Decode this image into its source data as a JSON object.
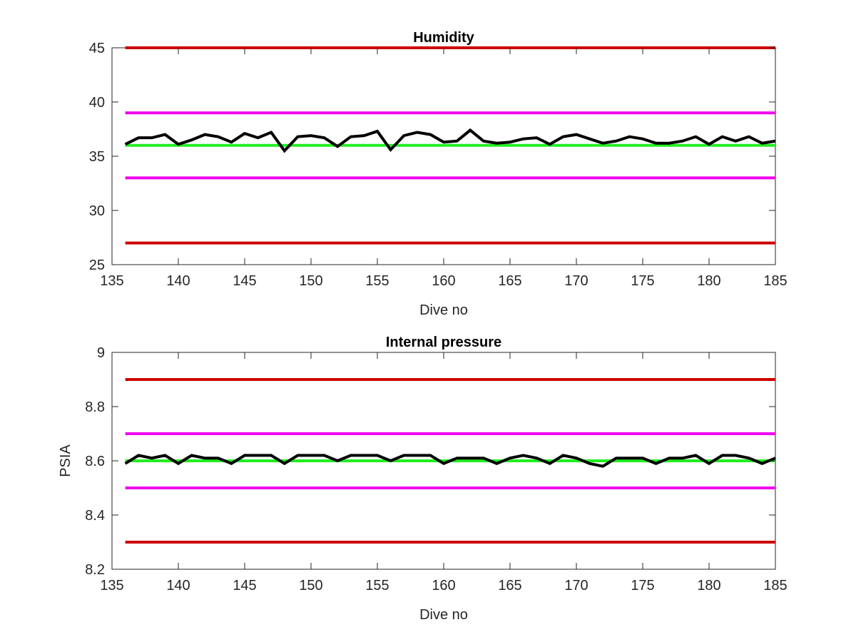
{
  "colors": {
    "red_limit": "#cc0000",
    "magenta_limit": "#ee00ee",
    "green_nominal": "#22ee22",
    "data_line": "#000000"
  },
  "chart_data": [
    {
      "type": "line",
      "title": "Humidity",
      "xlabel": "Dive no",
      "ylabel": "",
      "xlim": [
        135,
        185
      ],
      "ylim": [
        25,
        45
      ],
      "xticks": [
        135,
        140,
        145,
        150,
        155,
        160,
        165,
        170,
        175,
        180,
        185
      ],
      "yticks": [
        25,
        30,
        35,
        40,
        45
      ],
      "grid": false,
      "reference_lines": [
        {
          "y": 45,
          "color": "red",
          "x": [
            136,
            185
          ]
        },
        {
          "y": 39,
          "color": "magenta",
          "x": [
            136,
            185
          ]
        },
        {
          "y": 36,
          "color": "green",
          "x": [
            136,
            185
          ]
        },
        {
          "y": 33,
          "color": "magenta",
          "x": [
            136,
            185
          ]
        },
        {
          "y": 27,
          "color": "red",
          "x": [
            136,
            185
          ]
        }
      ],
      "series": [
        {
          "x": [
            136,
            137,
            138,
            139,
            140,
            141,
            142,
            143,
            144,
            145,
            146,
            147,
            148,
            149,
            150,
            151,
            152,
            153,
            154,
            155,
            156,
            157,
            158,
            159,
            160,
            161,
            162,
            163,
            164,
            165,
            166,
            167,
            168,
            169,
            170,
            171,
            172,
            173,
            174,
            175,
            176,
            177,
            178,
            179,
            180,
            181,
            182,
            183,
            184,
            185
          ],
          "values": [
            36.1,
            36.7,
            36.7,
            37.0,
            36.1,
            36.5,
            37.0,
            36.8,
            36.3,
            37.1,
            36.7,
            37.2,
            35.5,
            36.8,
            36.9,
            36.7,
            35.9,
            36.8,
            36.9,
            37.3,
            35.6,
            36.9,
            37.2,
            37.0,
            36.3,
            36.4,
            37.4,
            36.4,
            36.2,
            36.3,
            36.6,
            36.7,
            36.1,
            36.8,
            37.0,
            36.6,
            36.2,
            36.4,
            36.8,
            36.6,
            36.2,
            36.2,
            36.4,
            36.8,
            36.1,
            36.8,
            36.4,
            36.8,
            36.2,
            36.4
          ]
        }
      ]
    },
    {
      "type": "line",
      "title": "Internal pressure",
      "xlabel": "Dive no",
      "ylabel": "PSIA",
      "xlim": [
        135,
        185
      ],
      "ylim": [
        8.2,
        9
      ],
      "xticks": [
        135,
        140,
        145,
        150,
        155,
        160,
        165,
        170,
        175,
        180,
        185
      ],
      "yticks": [
        8.2,
        8.4,
        8.6,
        8.8,
        9
      ],
      "grid": false,
      "reference_lines": [
        {
          "y": 8.9,
          "color": "red",
          "x": [
            136,
            185
          ]
        },
        {
          "y": 8.7,
          "color": "magenta",
          "x": [
            136,
            185
          ]
        },
        {
          "y": 8.6,
          "color": "green",
          "x": [
            136,
            185
          ]
        },
        {
          "y": 8.5,
          "color": "magenta",
          "x": [
            136,
            185
          ]
        },
        {
          "y": 8.3,
          "color": "red",
          "x": [
            136,
            185
          ]
        }
      ],
      "series": [
        {
          "x": [
            136,
            137,
            138,
            139,
            140,
            141,
            142,
            143,
            144,
            145,
            146,
            147,
            148,
            149,
            150,
            151,
            152,
            153,
            154,
            155,
            156,
            157,
            158,
            159,
            160,
            161,
            162,
            163,
            164,
            165,
            166,
            167,
            168,
            169,
            170,
            171,
            172,
            173,
            174,
            175,
            176,
            177,
            178,
            179,
            180,
            181,
            182,
            183,
            184,
            185
          ],
          "values": [
            8.59,
            8.62,
            8.61,
            8.62,
            8.59,
            8.62,
            8.61,
            8.61,
            8.59,
            8.62,
            8.62,
            8.62,
            8.59,
            8.62,
            8.62,
            8.62,
            8.6,
            8.62,
            8.62,
            8.62,
            8.6,
            8.62,
            8.62,
            8.62,
            8.59,
            8.61,
            8.61,
            8.61,
            8.59,
            8.61,
            8.62,
            8.61,
            8.59,
            8.62,
            8.61,
            8.59,
            8.58,
            8.61,
            8.61,
            8.61,
            8.59,
            8.61,
            8.61,
            8.62,
            8.59,
            8.62,
            8.62,
            8.61,
            8.59,
            8.61
          ]
        }
      ]
    }
  ]
}
